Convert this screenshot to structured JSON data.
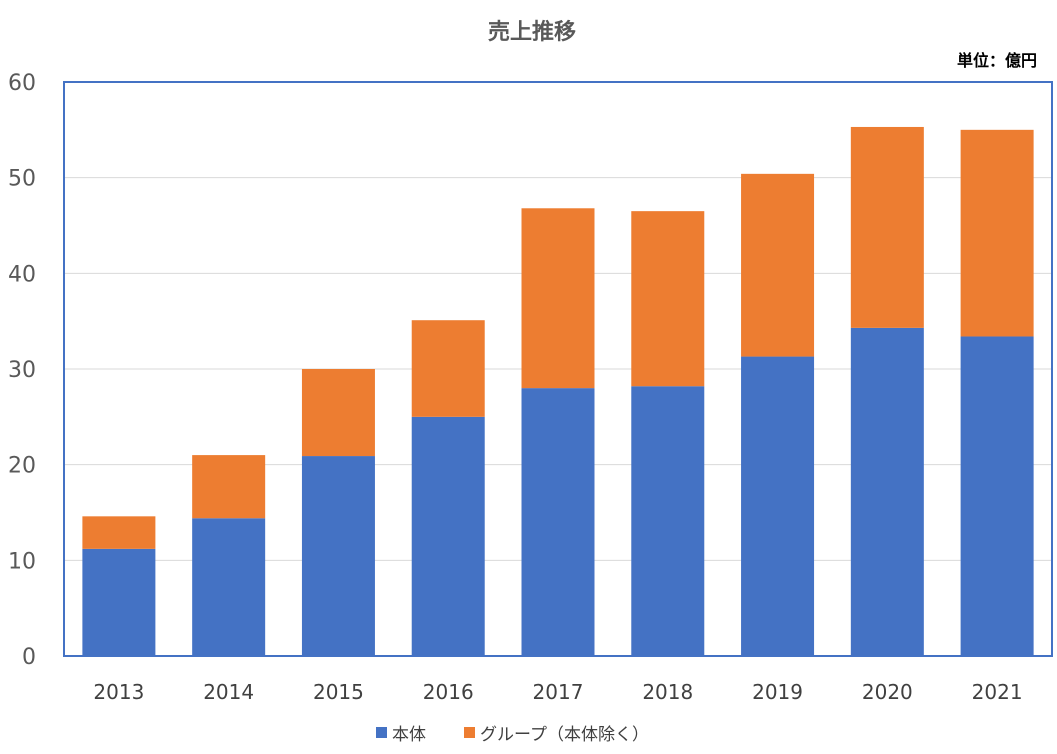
{
  "chart_data": {
    "type": "bar",
    "stacked": true,
    "title": "売上推移",
    "unit_label": "単位：億円",
    "xlabel": "",
    "ylabel": "",
    "ylim": [
      0,
      60
    ],
    "yticks": [
      0,
      10,
      20,
      30,
      40,
      50,
      60
    ],
    "grid": true,
    "legend_position": "bottom",
    "categories": [
      "2013",
      "2014",
      "2015",
      "2016",
      "2017",
      "2018",
      "2019",
      "2020",
      "2021"
    ],
    "series": [
      {
        "name": "本体",
        "color": "#4472C4",
        "values": [
          11.2,
          14.4,
          20.9,
          25.0,
          28.0,
          28.2,
          31.3,
          34.3,
          33.4
        ]
      },
      {
        "name": "グループ（本体除く）",
        "color": "#ED7D31",
        "values": [
          3.4,
          6.6,
          9.1,
          10.1,
          18.8,
          18.3,
          19.1,
          21.0,
          21.6
        ]
      }
    ]
  }
}
